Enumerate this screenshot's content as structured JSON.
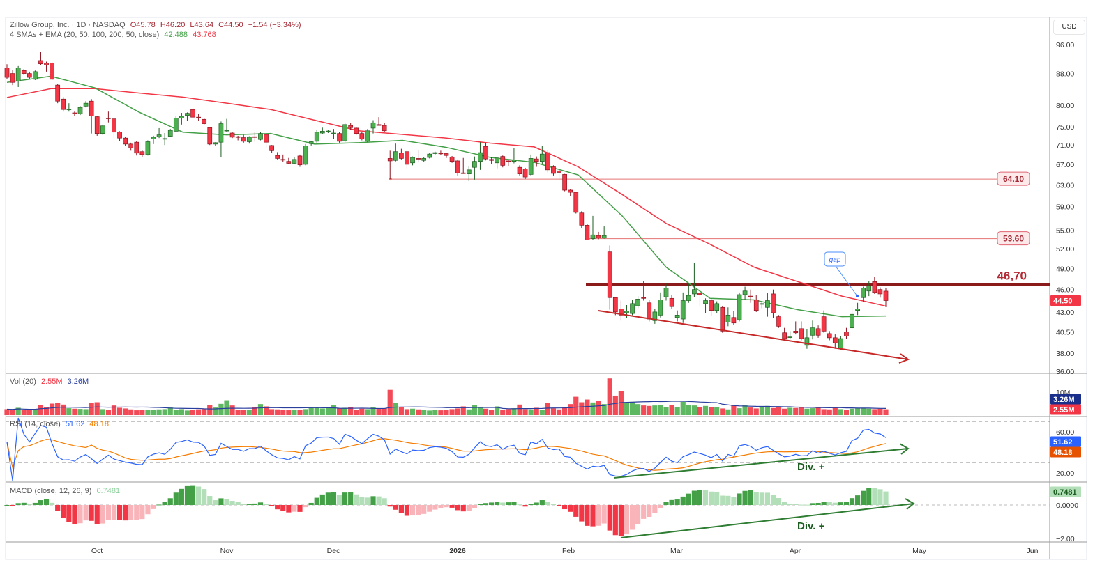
{
  "header": {
    "symbol_line": "Zillow Group, Inc. · 1D · NASDAQ",
    "open": "O45.78",
    "high": "H46.20",
    "low": "L43.64",
    "close": "C44.50",
    "change": "−1.54 (−3.34%)",
    "indicator_name": "4 SMAs + EMA (20, 50, 100, 200, 50, close)",
    "sma20_value": "42.488",
    "ema50_value": "43.768"
  },
  "currency": "USD",
  "volume_legend": {
    "name": "Vol (20)",
    "value": "2.55M",
    "ma_value": "3.26M"
  },
  "rsi_legend": {
    "name": "RSI (14, close)",
    "value": "51.62",
    "ma_value": "48.18"
  },
  "macd_legend": {
    "name": "MACD (close, 12, 26, 9)",
    "value": "0.7481"
  },
  "right_axis_labels": {
    "last_price": "44.50",
    "vol_ma": "3.26M",
    "vol": "2.55M",
    "vol_tick": "10M",
    "rsi": "51.62",
    "rsi_ma": "48.18",
    "rsi_ticks": [
      "60.00",
      "20.00"
    ],
    "macd": "0.7481",
    "macd_ticks": [
      "0.0000",
      "−2.00"
    ]
  },
  "annotations": {
    "gap_label": "gap",
    "level_46_label": "46,70",
    "rsi_divergence_label": "Div. +",
    "macd_divergence_label": "Div. +",
    "level_64_label": "64.10",
    "level_53_label": "53.60"
  },
  "colors": {
    "up": "#4caf50",
    "down": "#f23645",
    "up_border": "#1e5e22",
    "down_border": "#8c1420",
    "sma20": "#43a047",
    "ema50": "#f23645",
    "rsi": "#2962ff",
    "rsi_ma": "#f57c00",
    "vol_ma": "#2a3f9d",
    "level": "#e57373",
    "key_level": "#8b1a1a",
    "trend_price": "#c62828",
    "trend_div": "#2e7d32"
  },
  "chart_data": {
    "type": "candlestick",
    "title": "Zillow Group, Inc. · 1D · NASDAQ",
    "y_scale": "log",
    "ylim": [
      36,
      96
    ],
    "y_ticks": [
      96,
      88,
      80,
      75,
      71,
      67,
      63,
      59,
      55,
      52,
      49,
      46,
      43,
      40.5,
      38,
      36
    ],
    "x_ticks": [
      {
        "label": "Oct",
        "date": "2025-10-01"
      },
      {
        "label": "Nov",
        "date": "2025-11-03"
      },
      {
        "label": "Dec",
        "date": "2025-12-01"
      },
      {
        "label": "2026",
        "date": "2026-01-02"
      },
      {
        "label": "Feb",
        "date": "2026-02-02"
      },
      {
        "label": "Mar",
        "date": "2026-03-02"
      },
      {
        "label": "Apr",
        "date": "2026-04-01"
      },
      {
        "label": "May",
        "date": "2026-05-01"
      },
      {
        "label": "Jun",
        "date": "2026-06-01"
      }
    ],
    "candles_ohlc": [
      [
        89.5,
        90.5,
        86.5,
        87
      ],
      [
        88,
        89,
        85,
        85.7
      ],
      [
        86,
        90,
        84.5,
        89.5
      ],
      [
        88.8,
        89.2,
        87.8,
        88
      ],
      [
        88,
        88.5,
        86.5,
        87
      ],
      [
        86.5,
        88.8,
        86.3,
        88.5
      ],
      [
        91.5,
        94,
        90.3,
        90.6
      ],
      [
        90.8,
        91.2,
        88.5,
        90.3
      ],
      [
        90.8,
        91,
        86.3,
        86.5
      ],
      [
        85,
        85.3,
        80.5,
        81
      ],
      [
        81.5,
        82,
        78.5,
        79
      ],
      [
        79,
        80.5,
        78.5,
        79.1
      ],
      [
        78.2,
        78.5,
        77.5,
        78
      ],
      [
        78,
        79.8,
        77.7,
        79.5
      ],
      [
        79.8,
        81,
        79.5,
        80.5
      ],
      [
        81,
        81.5,
        73.5,
        77.5
      ],
      [
        77.3,
        77.5,
        73,
        73.5
      ],
      [
        73.5,
        75.5,
        73.2,
        75.2
      ],
      [
        77,
        78.5,
        76,
        76.9
      ],
      [
        76.8,
        77,
        72.5,
        73.8
      ],
      [
        73.8,
        74,
        71.8,
        72.5
      ],
      [
        72.5,
        72.8,
        70.8,
        71.2
      ],
      [
        71.2,
        71.5,
        69.8,
        70.4
      ],
      [
        71.6,
        71.8,
        68.8,
        69.3
      ],
      [
        69.6,
        70,
        68.5,
        69
      ],
      [
        69,
        72,
        68.8,
        71.7
      ],
      [
        72.3,
        73,
        71.2,
        72.7
      ],
      [
        72.8,
        74.7,
        72.5,
        73.2
      ],
      [
        72.3,
        73.6,
        71,
        72.4
      ],
      [
        72.9,
        74.5,
        72.8,
        74.2
      ],
      [
        74,
        77.5,
        73.8,
        77
      ],
      [
        77,
        78.2,
        75.5,
        77.4
      ],
      [
        77.6,
        78.3,
        76.3,
        78.1
      ],
      [
        79,
        79.4,
        77,
        77.2
      ],
      [
        77.2,
        78,
        76.3,
        77.1
      ],
      [
        76.7,
        77,
        75.5,
        75.7
      ],
      [
        74.8,
        74.9,
        71,
        71.2
      ],
      [
        71.2,
        71.6,
        70.8,
        71.5
      ],
      [
        71.6,
        76.2,
        68.5,
        75.7
      ],
      [
        74.1,
        76.8,
        73.8,
        74.2
      ],
      [
        73.6,
        73.8,
        72.5,
        72.7
      ],
      [
        72.8,
        73,
        72,
        72.7
      ],
      [
        72.6,
        73.2,
        71.5,
        71.8
      ],
      [
        71.7,
        72.9,
        71.3,
        72.7
      ],
      [
        72.8,
        73.8,
        71.7,
        72.7
      ],
      [
        72.2,
        73.8,
        72,
        73.5
      ],
      [
        73.3,
        73.5,
        70.3,
        71.6
      ],
      [
        70.9,
        71,
        69.3,
        69.8
      ],
      [
        68.8,
        69.5,
        68,
        68.2
      ],
      [
        68,
        69,
        67.5,
        67.9
      ],
      [
        67.6,
        68.3,
        67,
        67.2
      ],
      [
        67.2,
        68.4,
        67,
        68
      ],
      [
        68.7,
        69,
        66.5,
        66.9
      ],
      [
        67,
        71.2,
        66.8,
        70.8
      ],
      [
        71.3,
        71.9,
        70.9,
        71.7
      ],
      [
        71.8,
        74.3,
        71.5,
        73.8
      ],
      [
        73.6,
        74.8,
        73.4,
        74
      ],
      [
        74,
        74.3,
        73.6,
        74.05
      ],
      [
        73.5,
        74.5,
        72.3,
        73.6
      ],
      [
        73.5,
        73.8,
        71.5,
        71.8
      ],
      [
        71.9,
        75.8,
        71.6,
        75.5
      ],
      [
        75.3,
        75.8,
        74.3,
        74.8
      ],
      [
        74.7,
        75,
        73.2,
        73.5
      ],
      [
        73.5,
        73.8,
        72,
        72.3
      ],
      [
        71.8,
        74.5,
        71.6,
        74.1
      ],
      [
        74.7,
        76.5,
        73.5,
        75.9
      ],
      [
        75.5,
        77.2,
        75.3,
        75.3
      ],
      [
        75.3,
        75.8,
        73.8,
        74.1
      ],
      [
        68.2,
        69.8,
        64.1,
        67.7
      ],
      [
        67.8,
        71.3,
        67.6,
        69.6
      ],
      [
        69.3,
        70.2,
        68,
        68.2
      ],
      [
        69.6,
        69.8,
        66,
        67
      ],
      [
        67.3,
        68.6,
        66.8,
        68.4
      ],
      [
        68.2,
        69.9,
        67.4,
        68.1
      ],
      [
        67.8,
        68.4,
        67.5,
        68.2
      ],
      [
        68.4,
        69.4,
        68.2,
        69.1
      ],
      [
        69.2,
        69.6,
        69,
        69.4
      ],
      [
        69.3,
        69.8,
        68.9,
        69.2
      ],
      [
        69.2,
        69.3,
        68.3,
        68.8
      ],
      [
        68.5,
        68.7,
        67.3,
        67.6
      ],
      [
        67.7,
        68,
        64.8,
        65.3
      ],
      [
        65.3,
        68.3,
        65.1,
        65.2
      ],
      [
        65.1,
        66.6,
        63.7,
        65.9
      ],
      [
        66.4,
        68.6,
        64,
        67.6
      ],
      [
        67.6,
        71.6,
        65.9,
        69.4
      ],
      [
        70.7,
        71.5,
        67.8,
        68.1
      ],
      [
        68,
        68.5,
        67,
        67.8
      ],
      [
        67.3,
        68.5,
        66.2,
        68.3
      ],
      [
        68.6,
        68.8,
        66.4,
        66.8
      ],
      [
        67.7,
        67.9,
        66.7,
        67.6
      ],
      [
        67.6,
        70.4,
        67.2,
        67.9
      ],
      [
        66.4,
        66.8,
        64.8,
        65.1
      ],
      [
        66.1,
        66.3,
        64.1,
        64.5
      ],
      [
        65,
        69,
        64.8,
        68.2
      ],
      [
        68.1,
        68.6,
        66.5,
        67.6
      ],
      [
        67.6,
        70.8,
        67,
        69.1
      ],
      [
        69.4,
        70,
        65.4,
        65.9
      ],
      [
        66.5,
        66.8,
        64.8,
        65.2
      ],
      [
        65.7,
        65.9,
        64,
        65.4
      ],
      [
        65,
        65.1,
        61.8,
        62
      ],
      [
        62,
        62.2,
        60.9,
        61.6
      ],
      [
        61.6,
        61.7,
        57.8,
        58
      ],
      [
        57.9,
        58.2,
        55.3,
        55.8
      ],
      [
        55.8,
        56,
        53.4,
        53.4
      ],
      [
        53.6,
        57.4,
        53.4,
        54.2
      ],
      [
        54.1,
        54.7,
        53.5,
        53.7
      ],
      [
        53.7,
        55.6,
        53.6,
        54.1
      ],
      [
        51.5,
        52.5,
        43.3,
        44.9
      ],
      [
        44.9,
        44.9,
        42.6,
        43
      ],
      [
        43.4,
        44.5,
        41.9,
        42.6
      ],
      [
        42.9,
        43.9,
        42.2,
        43.1
      ],
      [
        42.8,
        44.6,
        42.6,
        44.1
      ],
      [
        43.8,
        45.1,
        43.5,
        44.7
      ],
      [
        44.9,
        47.2,
        44.5,
        44.8
      ],
      [
        44.2,
        44.6,
        41.8,
        42.1
      ],
      [
        41.9,
        43.4,
        41.5,
        43
      ],
      [
        42.6,
        45.6,
        42.3,
        44.6
      ],
      [
        45,
        46.8,
        44.5,
        46.2
      ],
      [
        44.8,
        45.3,
        43.4,
        43.7
      ],
      [
        42.3,
        43.2,
        41.8,
        42.6
      ],
      [
        42.1,
        45.6,
        41.6,
        44.5
      ],
      [
        44.5,
        46.9,
        44.2,
        45.2
      ],
      [
        45.4,
        49.8,
        45,
        46
      ],
      [
        45.5,
        45.6,
        43.8,
        45.3
      ],
      [
        44.1,
        44.8,
        42.9,
        44.5
      ],
      [
        44.5,
        44.8,
        42.5,
        43.2
      ],
      [
        43.2,
        44.4,
        42.9,
        44.1
      ],
      [
        43.6,
        43.8,
        40.4,
        40.6
      ],
      [
        41.7,
        43.6,
        41.2,
        42.6
      ],
      [
        42.3,
        43.1,
        41.4,
        41.6
      ],
      [
        42,
        45.6,
        41.8,
        45.3
      ],
      [
        45.3,
        46.4,
        44.6,
        45.8
      ],
      [
        45.1,
        46,
        44.2,
        45
      ],
      [
        44.6,
        45.3,
        43,
        43.2
      ],
      [
        44,
        44.4,
        43.5,
        44.1
      ],
      [
        43.6,
        45.5,
        42.4,
        44.5
      ],
      [
        45.4,
        46,
        42.2,
        42.9
      ],
      [
        42.4,
        42.6,
        41,
        41.2
      ],
      [
        40.4,
        41,
        39.5,
        39.7
      ],
      [
        39.9,
        40.6,
        39.6,
        39.9
      ],
      [
        40.6,
        41.8,
        40.2,
        40.4
      ],
      [
        40.9,
        41.8,
        39.5,
        39.7
      ],
      [
        38.9,
        40.8,
        38.5,
        39.8
      ],
      [
        40.1,
        41.9,
        39.6,
        41
      ],
      [
        40.9,
        41.3,
        39.8,
        40.1
      ],
      [
        42.4,
        43.2,
        40.4,
        40.6
      ],
      [
        40.3,
        40.6,
        39.5,
        39.8
      ],
      [
        39.8,
        40.2,
        38.5,
        39.2
      ],
      [
        38.6,
        40,
        38.4,
        39.7
      ],
      [
        40.5,
        41,
        39.7,
        40
      ],
      [
        41,
        43.6,
        40.8,
        42.7
      ],
      [
        43.2,
        44.2,
        42.6,
        43.4
      ],
      [
        44.9,
        46.4,
        44.3,
        46.2
      ],
      [
        45.8,
        47.2,
        45.1,
        46.5
      ],
      [
        47.1,
        47.8,
        45.4,
        45.6
      ],
      [
        46,
        46.3,
        44.9,
        45.4
      ],
      [
        45.78,
        46.2,
        43.64,
        44.5
      ]
    ],
    "volumes_millions": [
      2.6,
      2.4,
      3.2,
      2.3,
      2.2,
      2.6,
      4.5,
      3.6,
      5.0,
      5.4,
      4.6,
      3.0,
      2.8,
      2.7,
      2.6,
      5.3,
      5.6,
      2.6,
      2.4,
      4.2,
      3.2,
      2.9,
      2.5,
      2.1,
      2.4,
      2.2,
      2.3,
      2.5,
      2.6,
      3.3,
      2.4,
      2.6,
      2.0,
      2.2,
      2.5,
      2.6,
      4.3,
      3.3,
      4.9,
      6.5,
      4.2,
      2.4,
      2.3,
      2.2,
      3.5,
      4.8,
      3.8,
      2.6,
      2.5,
      2.2,
      2.3,
      2.4,
      2.3,
      2.6,
      3.2,
      3.4,
      2.9,
      3.2,
      4.3,
      2.9,
      3.2,
      3.4,
      2.4,
      2.8,
      2.6,
      3.6,
      2.7,
      3.0,
      11.0,
      5.2,
      3.6,
      2.6,
      2.8,
      2.5,
      2.2,
      2.0,
      2.4,
      2.1,
      2.2,
      2.6,
      2.9,
      3.8,
      2.5,
      4.4,
      3.2,
      2.8,
      2.4,
      3.8,
      2.4,
      2.6,
      3.0,
      4.6,
      2.6,
      2.5,
      3.2,
      2.4,
      5.4,
      2.9,
      2.5,
      3.4,
      4.8,
      8.0,
      5.6,
      6.8,
      5.5,
      6.2,
      4.8,
      16.0,
      8.5,
      10.5,
      5.5,
      5.8,
      4.8,
      4.2,
      4.0,
      4.2,
      4.4,
      3.6,
      4.4,
      3.5,
      5.8,
      4.5,
      4.2,
      3.6,
      4.0,
      3.5,
      3.4,
      2.9,
      2.5,
      4.2,
      3.0,
      4.4,
      3.3,
      2.9,
      3.8,
      4.0,
      3.1,
      3.5,
      2.8,
      3.2,
      3.1,
      3.5,
      2.8,
      3.0,
      3.2,
      2.6,
      2.5,
      3.3,
      2.6,
      2.4,
      2.8,
      3.0,
      3.2,
      2.8,
      2.6,
      2.8,
      2.55
    ],
    "sma20_samples": [
      85.7,
      87.3,
      84.3,
      78.4,
      73.8,
      73.2,
      73.5,
      71.2,
      71.5,
      72.0,
      70.5,
      68.4,
      67.4,
      64.9,
      57.4,
      49.2,
      44.8,
      44.6,
      43.3,
      42.4,
      42.49
    ],
    "ema50_samples": [
      81.9,
      84.1,
      84.1,
      83.0,
      82.0,
      80.5,
      79.0,
      76.5,
      74.1,
      73.3,
      72.5,
      71.4,
      70.6,
      66.5,
      61.2,
      56.1,
      52.7,
      49.2,
      47.1,
      45.1,
      43.77
    ],
    "levels": [
      64.1,
      53.6,
      46.7
    ],
    "rsi_bands": [
      70,
      50,
      30
    ],
    "rsi_axis_ticks": [
      60,
      20
    ],
    "macd_axis_ticks": [
      0,
      -2
    ]
  }
}
